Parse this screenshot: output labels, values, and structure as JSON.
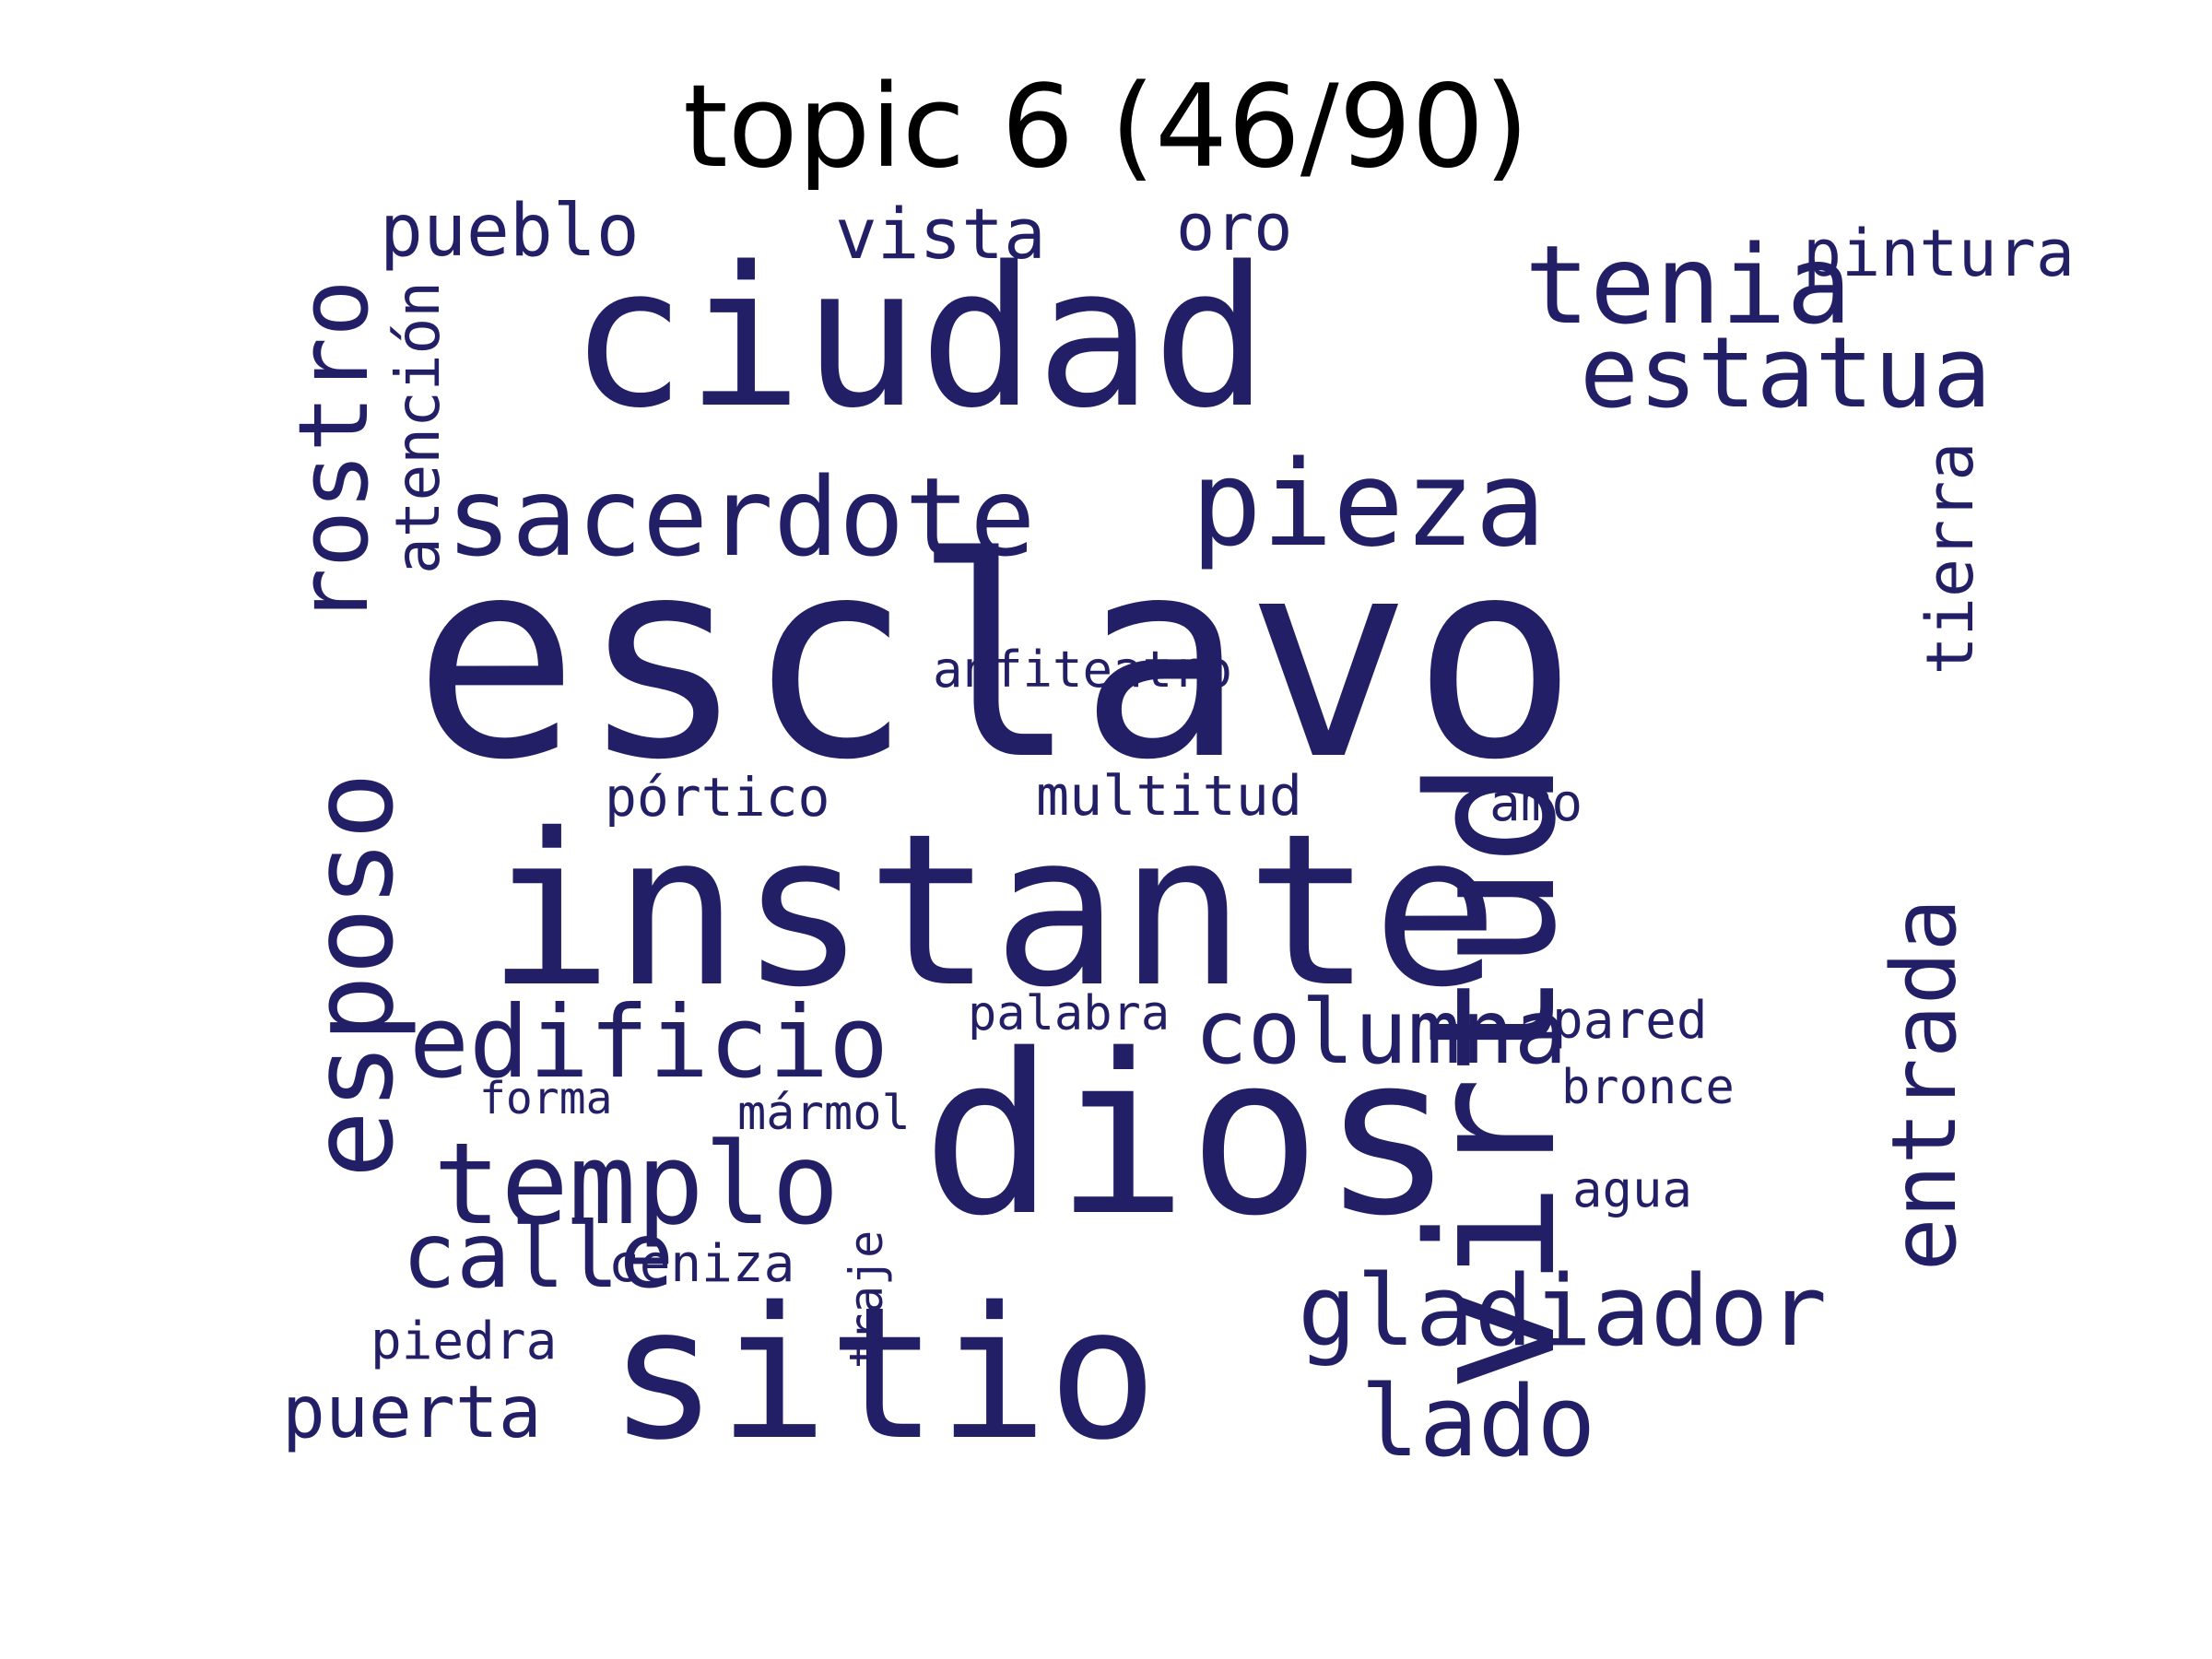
{
  "title": "topic 6 (46/90)",
  "colors": {
    "word": "#231f66",
    "background": "#ffffff",
    "title": "#000000"
  },
  "words": [
    "esclavo",
    "instante",
    "ciudad",
    "dios",
    "sitio",
    "pieza",
    "sacerdote",
    "edificio",
    "templo",
    "columna",
    "gladiador",
    "lado",
    "tenia",
    "estatua",
    "calle",
    "pueblo",
    "puerta",
    "vista",
    "oro",
    "multitud",
    "pórtico",
    "pintura",
    "pared",
    "piedra",
    "ceniza",
    "palabra",
    "anfiteatro",
    "amo",
    "agua",
    "mármol",
    "forma",
    "bronce",
    "virtud",
    "esposo",
    "rostro",
    "entrada",
    "tierra",
    "atención",
    "traje"
  ]
}
